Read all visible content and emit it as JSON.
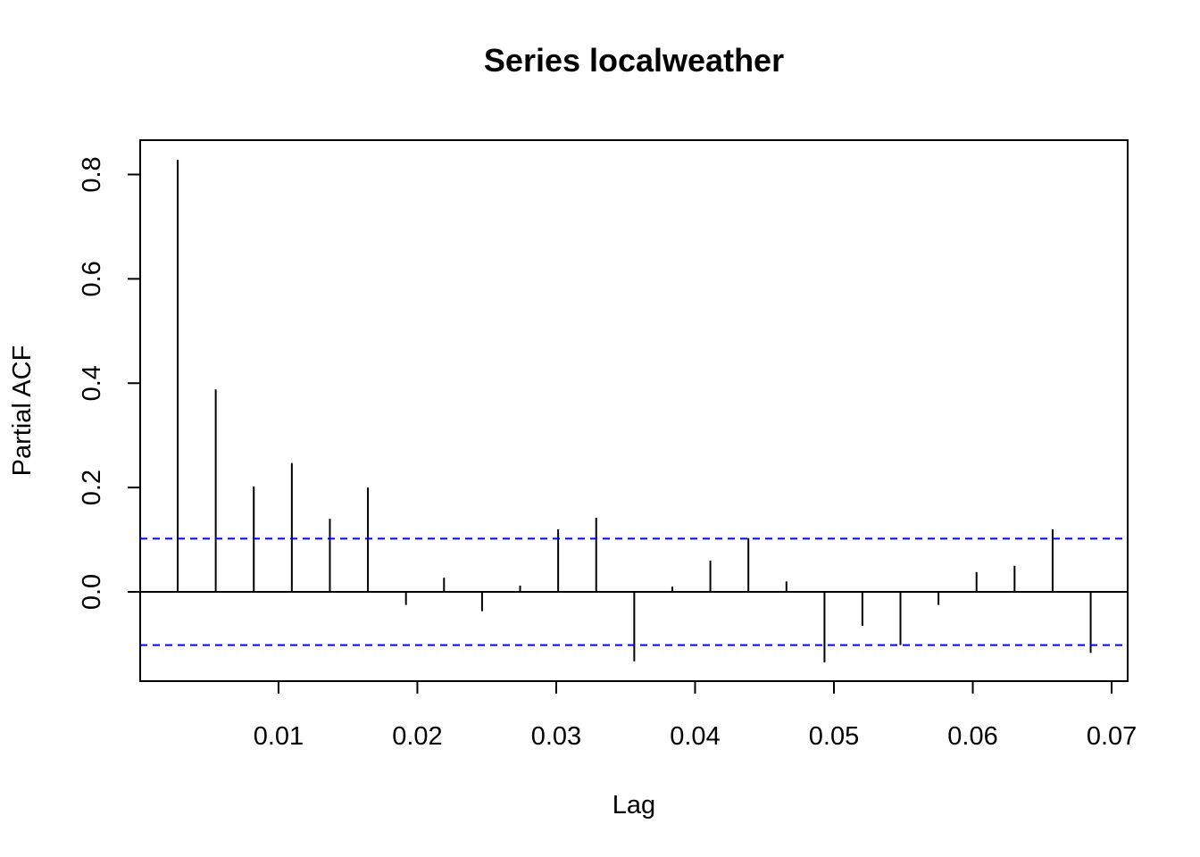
{
  "chart_data": {
    "type": "bar",
    "title": "Series  localweather",
    "xlabel": "Lag",
    "ylabel": "Partial ACF",
    "xlim": [
      0,
      0.07
    ],
    "ylim": [
      -0.15,
      0.85
    ],
    "x_ticks": [
      0.01,
      0.02,
      0.03,
      0.04,
      0.05,
      0.06,
      0.07
    ],
    "x_tick_labels": [
      "0.01",
      "0.02",
      "0.03",
      "0.04",
      "0.05",
      "0.06",
      "0.07"
    ],
    "y_ticks": [
      0.0,
      0.2,
      0.4,
      0.6,
      0.8
    ],
    "y_tick_labels": [
      "0.0",
      "0.2",
      "0.4",
      "0.6",
      "0.8"
    ],
    "confidence_bound": 0.102,
    "colors": {
      "bars": "#000000",
      "confidence": "#0000ff",
      "frame": "#000000"
    },
    "series": [
      {
        "x": [
          0.00274,
          0.00548,
          0.00822,
          0.01096,
          0.0137,
          0.01644,
          0.01918,
          0.02192,
          0.02466,
          0.0274,
          0.03014,
          0.03288,
          0.03562,
          0.03836,
          0.0411,
          0.04384,
          0.04658,
          0.04932,
          0.05205,
          0.05479,
          0.05753,
          0.06027,
          0.06301,
          0.06575,
          0.06849
        ],
        "values": [
          0.828,
          0.388,
          0.202,
          0.247,
          0.14,
          0.2,
          -0.025,
          0.027,
          -0.037,
          0.012,
          0.12,
          0.142,
          -0.133,
          0.01,
          0.06,
          0.103,
          0.02,
          -0.135,
          -0.065,
          -0.102,
          -0.025,
          0.038,
          0.05,
          0.12,
          -0.117
        ]
      }
    ],
    "grid": false,
    "legend": "none"
  }
}
